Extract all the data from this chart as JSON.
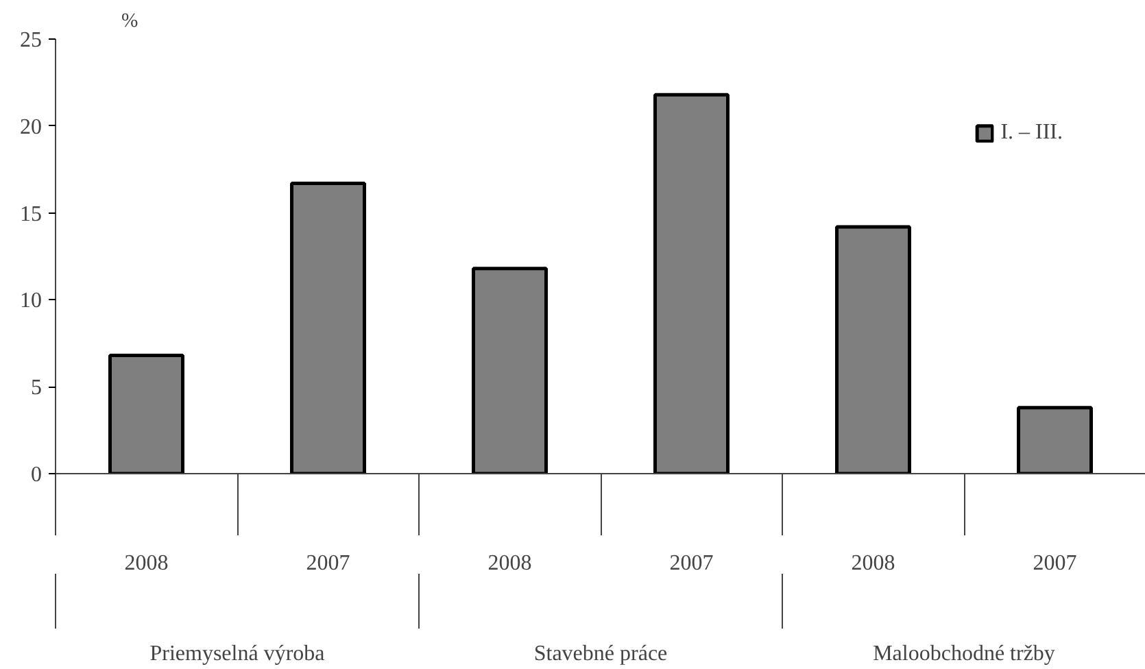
{
  "chart_data": {
    "type": "bar",
    "ylabel": "%",
    "categories": [
      "2008",
      "2007",
      "2008",
      "2007",
      "2008",
      "2007"
    ],
    "series": [
      {
        "name": "I. – III.",
        "color": "#7f7f7f",
        "values": [
          6.8,
          16.7,
          11.8,
          21.8,
          14.2,
          3.8
        ]
      }
    ],
    "annotations": [
      "Priemyselná výroba",
      "Stavebné práce",
      "Maloobchodné tržby"
    ],
    "ylim": [
      0,
      25
    ],
    "yticks": [
      0,
      5,
      10,
      15,
      20,
      25
    ],
    "grid": false,
    "legend": "top right"
  }
}
